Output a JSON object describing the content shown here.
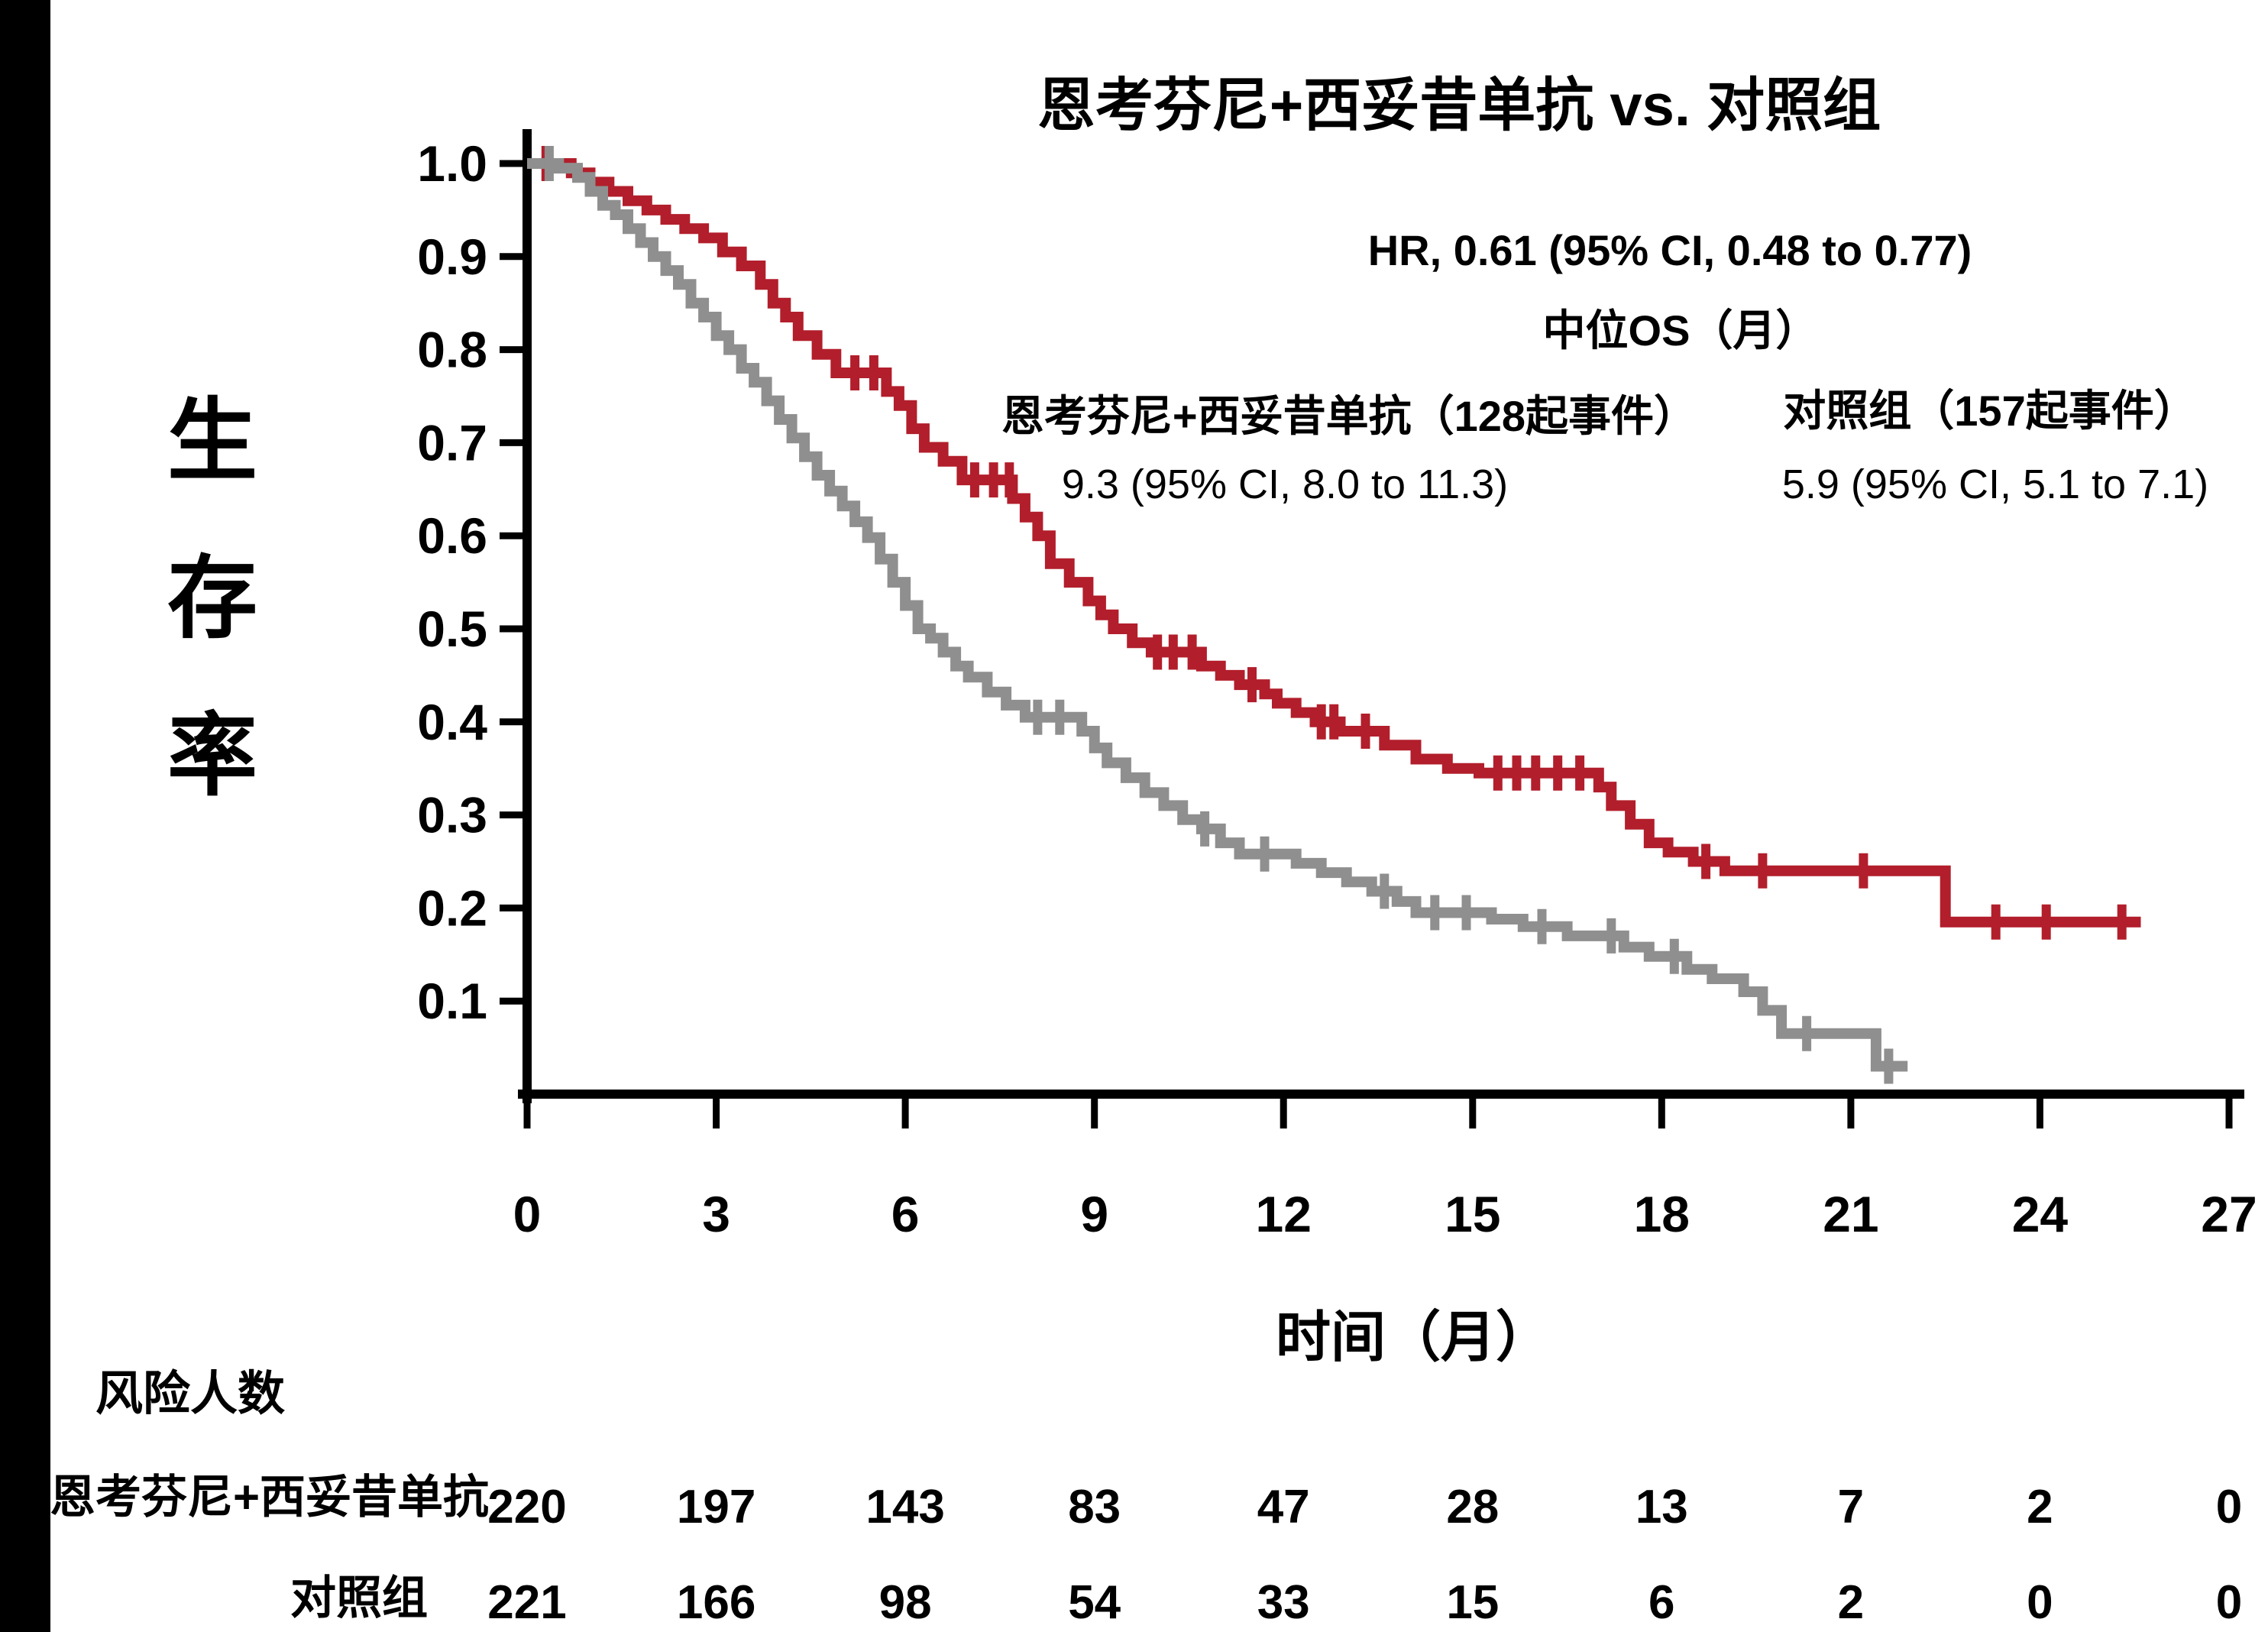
{
  "page": {
    "background": "#ffffff",
    "left_bar_color": "#000000"
  },
  "chart_data": {
    "type": "line",
    "subtype": "kaplan_meier_step",
    "title": "恩考芬尼+西妥昔单抗 vs. 对照组",
    "xlabel": "时间（月）",
    "ylabel": "生存率",
    "xlim": [
      0,
      27
    ],
    "ylim": [
      0,
      1.0
    ],
    "grid": false,
    "legend_position": "none",
    "x_ticks": [
      0,
      3,
      6,
      9,
      12,
      15,
      18,
      21,
      24,
      27
    ],
    "y_tick_labels": [
      "1.0",
      "0.9",
      "0.8",
      "0.7",
      "0.6",
      "0.5",
      "0.4",
      "0.3",
      "0.2",
      "0.1"
    ],
    "annotations": {
      "hr": "HR, 0.61 (95% CI, 0.48 to 0.77)",
      "median_header": "中位OS（月）",
      "group1_label": "恩考芬尼+西妥昔单抗（128起事件）",
      "group1_label_color": "#C30000",
      "group1_median": "9.3 (95% CI, 8.0 to 11.3)",
      "group2_label": "对照组（157起事件）",
      "group2_median": "5.9 (95% CI, 5.1 to 7.1)"
    },
    "series": [
      {
        "id": "treatment",
        "name": "恩考芬尼+西妥昔单抗",
        "events": 128,
        "median_os_months": 9.3,
        "color": "#B21E2B",
        "end_t": 25.6,
        "steps": [
          [
            0,
            1.0
          ],
          [
            0.7,
            0.99
          ],
          [
            1.0,
            0.98
          ],
          [
            1.3,
            0.97
          ],
          [
            1.6,
            0.96
          ],
          [
            1.9,
            0.95
          ],
          [
            2.2,
            0.94
          ],
          [
            2.5,
            0.93
          ],
          [
            2.8,
            0.92
          ],
          [
            3.1,
            0.905
          ],
          [
            3.4,
            0.89
          ],
          [
            3.7,
            0.87
          ],
          [
            3.9,
            0.85
          ],
          [
            4.1,
            0.835
          ],
          [
            4.3,
            0.815
          ],
          [
            4.6,
            0.795
          ],
          [
            4.9,
            0.775
          ],
          [
            5.7,
            0.755
          ],
          [
            5.9,
            0.74
          ],
          [
            6.1,
            0.715
          ],
          [
            6.3,
            0.695
          ],
          [
            6.6,
            0.68
          ],
          [
            6.9,
            0.66
          ],
          [
            7.7,
            0.64
          ],
          [
            7.9,
            0.62
          ],
          [
            8.1,
            0.6
          ],
          [
            8.3,
            0.57
          ],
          [
            8.6,
            0.55
          ],
          [
            8.9,
            0.53
          ],
          [
            9.1,
            0.515
          ],
          [
            9.3,
            0.5
          ],
          [
            9.6,
            0.485
          ],
          [
            9.9,
            0.475
          ],
          [
            10.7,
            0.46
          ],
          [
            11.0,
            0.45
          ],
          [
            11.3,
            0.44
          ],
          [
            11.7,
            0.43
          ],
          [
            11.9,
            0.42
          ],
          [
            12.2,
            0.41
          ],
          [
            12.5,
            0.4
          ],
          [
            12.9,
            0.39
          ],
          [
            13.6,
            0.375
          ],
          [
            14.1,
            0.36
          ],
          [
            14.6,
            0.35
          ],
          [
            15.1,
            0.345
          ],
          [
            17.0,
            0.33
          ],
          [
            17.2,
            0.31
          ],
          [
            17.5,
            0.29
          ],
          [
            17.8,
            0.27
          ],
          [
            18.1,
            0.26
          ],
          [
            18.5,
            0.25
          ],
          [
            19.0,
            0.24
          ],
          [
            22.5,
            0.185
          ]
        ],
        "censors": [
          [
            0.3,
            1.0
          ],
          [
            5.2,
            0.775
          ],
          [
            5.5,
            0.775
          ],
          [
            7.1,
            0.66
          ],
          [
            7.4,
            0.66
          ],
          [
            7.65,
            0.66
          ],
          [
            10.0,
            0.475
          ],
          [
            10.25,
            0.475
          ],
          [
            10.55,
            0.475
          ],
          [
            11.5,
            0.44
          ],
          [
            12.6,
            0.4
          ],
          [
            12.8,
            0.4
          ],
          [
            13.3,
            0.39
          ],
          [
            15.4,
            0.345
          ],
          [
            15.7,
            0.345
          ],
          [
            16.0,
            0.345
          ],
          [
            16.35,
            0.345
          ],
          [
            16.7,
            0.345
          ],
          [
            18.7,
            0.25
          ],
          [
            19.6,
            0.24
          ],
          [
            21.2,
            0.24
          ],
          [
            23.3,
            0.185
          ],
          [
            24.1,
            0.185
          ],
          [
            25.3,
            0.185
          ]
        ]
      },
      {
        "id": "control",
        "name": "对照组",
        "events": 157,
        "median_os_months": 5.9,
        "color": "#8F8F8F",
        "end_t": 21.9,
        "steps": [
          [
            0,
            1.0
          ],
          [
            0.5,
            0.995
          ],
          [
            0.8,
            0.985
          ],
          [
            1.0,
            0.97
          ],
          [
            1.2,
            0.955
          ],
          [
            1.4,
            0.945
          ],
          [
            1.6,
            0.93
          ],
          [
            1.8,
            0.915
          ],
          [
            2.0,
            0.9
          ],
          [
            2.2,
            0.885
          ],
          [
            2.4,
            0.87
          ],
          [
            2.6,
            0.85
          ],
          [
            2.8,
            0.835
          ],
          [
            3.0,
            0.815
          ],
          [
            3.2,
            0.8
          ],
          [
            3.4,
            0.78
          ],
          [
            3.6,
            0.765
          ],
          [
            3.8,
            0.745
          ],
          [
            4.0,
            0.725
          ],
          [
            4.2,
            0.705
          ],
          [
            4.4,
            0.685
          ],
          [
            4.6,
            0.665
          ],
          [
            4.8,
            0.648
          ],
          [
            5.0,
            0.632
          ],
          [
            5.2,
            0.615
          ],
          [
            5.4,
            0.598
          ],
          [
            5.6,
            0.575
          ],
          [
            5.8,
            0.55
          ],
          [
            6.0,
            0.525
          ],
          [
            6.2,
            0.5
          ],
          [
            6.4,
            0.49
          ],
          [
            6.6,
            0.475
          ],
          [
            6.8,
            0.46
          ],
          [
            7.0,
            0.448
          ],
          [
            7.3,
            0.432
          ],
          [
            7.6,
            0.418
          ],
          [
            7.9,
            0.405
          ],
          [
            8.8,
            0.39
          ],
          [
            9.0,
            0.372
          ],
          [
            9.2,
            0.356
          ],
          [
            9.5,
            0.34
          ],
          [
            9.8,
            0.324
          ],
          [
            10.1,
            0.31
          ],
          [
            10.4,
            0.295
          ],
          [
            10.7,
            0.285
          ],
          [
            11.0,
            0.27
          ],
          [
            11.3,
            0.258
          ],
          [
            12.2,
            0.248
          ],
          [
            12.6,
            0.238
          ],
          [
            13.0,
            0.228
          ],
          [
            13.4,
            0.218
          ],
          [
            13.8,
            0.207
          ],
          [
            14.1,
            0.195
          ],
          [
            15.3,
            0.188
          ],
          [
            15.8,
            0.18
          ],
          [
            16.5,
            0.17
          ],
          [
            17.4,
            0.158
          ],
          [
            17.8,
            0.148
          ],
          [
            18.4,
            0.134
          ],
          [
            18.8,
            0.124
          ],
          [
            19.3,
            0.11
          ],
          [
            19.6,
            0.09
          ],
          [
            19.9,
            0.065
          ],
          [
            21.4,
            0.03
          ]
        ],
        "censors": [
          [
            0.35,
            1.0
          ],
          [
            8.1,
            0.405
          ],
          [
            8.45,
            0.405
          ],
          [
            10.75,
            0.285
          ],
          [
            11.7,
            0.258
          ],
          [
            13.6,
            0.218
          ],
          [
            14.4,
            0.195
          ],
          [
            14.9,
            0.195
          ],
          [
            16.1,
            0.18
          ],
          [
            17.2,
            0.17
          ],
          [
            18.2,
            0.148
          ],
          [
            20.3,
            0.065
          ],
          [
            21.6,
            0.03
          ]
        ]
      }
    ],
    "risk_table": {
      "header": "风险人数",
      "time_points": [
        0,
        3,
        6,
        9,
        12,
        15,
        18,
        21,
        24,
        27
      ],
      "rows": [
        {
          "label": "恩考芬尼+西妥昔单抗",
          "values": [
            220,
            197,
            143,
            83,
            47,
            28,
            13,
            7,
            2,
            0
          ]
        },
        {
          "label": "对照组",
          "values": [
            221,
            166,
            98,
            54,
            33,
            15,
            6,
            2,
            0,
            0
          ]
        }
      ]
    }
  }
}
